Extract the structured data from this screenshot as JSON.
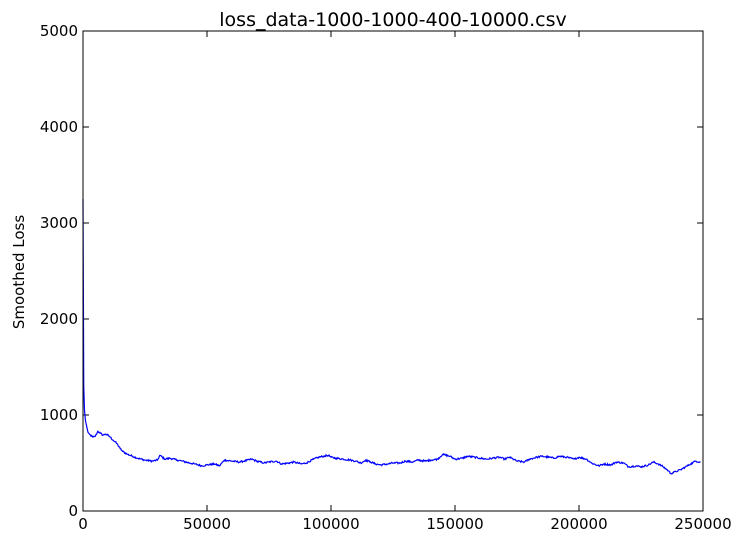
{
  "chart_data": {
    "type": "line",
    "title": "loss_data-1000-1000-400-10000.csv",
    "xlabel": "",
    "ylabel": "Smoothed Loss",
    "xlim": [
      0,
      250000
    ],
    "ylim": [
      0,
      5000
    ],
    "xticks": [
      0,
      50000,
      100000,
      150000,
      200000,
      250000
    ],
    "yticks": [
      0,
      1000,
      2000,
      3000,
      4000,
      5000
    ],
    "grid": false,
    "series": [
      {
        "color": "#0000ff",
        "x": [
          0,
          300,
          600,
          1000,
          1500,
          2000,
          3000,
          4000,
          5000,
          6000,
          7000,
          8000,
          9000,
          10000,
          11000,
          12000,
          13000,
          14000,
          15000,
          16000,
          18000,
          20000,
          22000,
          25000,
          28000,
          30000,
          31000,
          33000,
          35000,
          38000,
          40000,
          43000,
          45000,
          48000,
          50000,
          53000,
          55000,
          57000,
          60000,
          63000,
          65000,
          68000,
          70000,
          73000,
          75000,
          78000,
          80000,
          83000,
          85000,
          88000,
          90000,
          93000,
          95000,
          97000,
          99000,
          100000,
          102000,
          105000,
          108000,
          110000,
          112000,
          114000,
          116000,
          118000,
          120000,
          123000,
          125000,
          128000,
          130000,
          133000,
          135000,
          138000,
          140000,
          143000,
          145000,
          148000,
          150000,
          153000,
          155000,
          158000,
          160000,
          163000,
          165000,
          168000,
          170000,
          172000,
          175000,
          178000,
          180000,
          183000,
          185000,
          188000,
          190000,
          192000,
          195000,
          198000,
          200000,
          203000,
          205000,
          208000,
          210000,
          213000,
          215000,
          218000,
          220000,
          223000,
          225000,
          228000,
          230000,
          232000,
          234000,
          236000,
          237000,
          239000,
          241000,
          243000,
          245000,
          247000,
          249000
        ],
        "y": [
          3250,
          1300,
          1050,
          940,
          880,
          820,
          790,
          770,
          780,
          830,
          810,
          790,
          800,
          790,
          770,
          740,
          720,
          690,
          650,
          620,
          590,
          570,
          550,
          530,
          520,
          530,
          580,
          540,
          550,
          530,
          520,
          500,
          490,
          470,
          480,
          490,
          470,
          530,
          520,
          510,
          520,
          540,
          520,
          500,
          510,
          520,
          490,
          500,
          510,
          490,
          500,
          540,
          560,
          570,
          580,
          560,
          550,
          540,
          530,
          520,
          500,
          530,
          510,
          490,
          480,
          490,
          500,
          500,
          520,
          510,
          530,
          520,
          530,
          540,
          590,
          570,
          540,
          550,
          570,
          560,
          550,
          540,
          550,
          560,
          540,
          560,
          520,
          510,
          540,
          560,
          570,
          560,
          550,
          570,
          560,
          540,
          560,
          540,
          500,
          470,
          490,
          480,
          510,
          500,
          460,
          470,
          460,
          480,
          510,
          490,
          460,
          420,
          390,
          410,
          430,
          460,
          490,
          520,
          510
        ]
      }
    ]
  }
}
